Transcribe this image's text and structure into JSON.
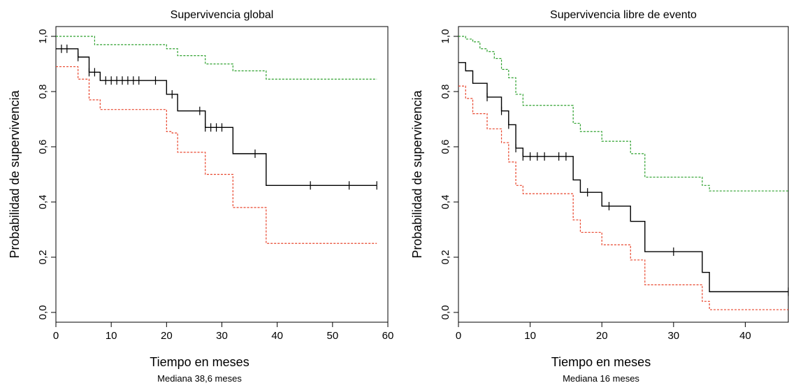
{
  "colors": {
    "estimate": "#000000",
    "upper_ci": "#2ca02c",
    "lower_ci": "#e8452c"
  },
  "chart_data": [
    {
      "type": "line",
      "title": "Supervivencia global",
      "xlabel": "Tiempo en meses",
      "subtitle": "Mediana 38,6 meses",
      "ylabel": "Probabilidad de supervivencia",
      "xlim": [
        0,
        60
      ],
      "ylim": [
        0,
        1
      ],
      "xticks": [
        0,
        10,
        20,
        30,
        40,
        50,
        60
      ],
      "xtick_labels": [
        "0",
        "10",
        "20",
        "30",
        "40",
        "50",
        "60"
      ],
      "yticks": [
        0,
        0.2,
        0.4,
        0.6,
        0.8,
        1.0
      ],
      "ytick_labels": [
        "0,0",
        "0,2",
        "0,4",
        "0,6",
        "0,8",
        "1,0"
      ],
      "grid": false,
      "series": [
        {
          "role": "estimate",
          "style": "solid",
          "x": [
            0,
            1,
            4,
            6,
            8,
            20,
            22,
            27,
            32,
            38,
            58
          ],
          "y": [
            0.955,
            0.955,
            0.925,
            0.87,
            0.84,
            0.79,
            0.73,
            0.67,
            0.575,
            0.46,
            0.46
          ],
          "censor_x": [
            1,
            2,
            4,
            6,
            7,
            9,
            10,
            11,
            12,
            13,
            14,
            15,
            18,
            21,
            26,
            27,
            28,
            29,
            30,
            36,
            46,
            53,
            58
          ],
          "censor_y": [
            0.955,
            0.955,
            0.925,
            0.87,
            0.87,
            0.84,
            0.84,
            0.84,
            0.84,
            0.84,
            0.84,
            0.84,
            0.84,
            0.79,
            0.73,
            0.67,
            0.67,
            0.67,
            0.67,
            0.575,
            0.46,
            0.46,
            0.46
          ]
        },
        {
          "role": "upper_ci",
          "style": "dotted",
          "x": [
            0,
            6,
            7,
            20,
            22,
            27,
            32,
            38,
            58
          ],
          "y": [
            1.0,
            1.0,
            0.97,
            0.955,
            0.93,
            0.9,
            0.875,
            0.845,
            0.845
          ]
        },
        {
          "role": "lower_ci",
          "style": "dotted",
          "x": [
            0,
            4,
            6,
            8,
            20,
            21,
            22,
            27,
            32,
            38,
            58
          ],
          "y": [
            0.89,
            0.845,
            0.77,
            0.735,
            0.655,
            0.65,
            0.58,
            0.5,
            0.38,
            0.25,
            0.25
          ]
        }
      ]
    },
    {
      "type": "line",
      "title": "Supervivencia libre de evento",
      "xlabel": "Tiempo en meses",
      "subtitle": "Mediana 16 meses",
      "ylabel": "Probabilidad de supervivencia",
      "xlim": [
        0,
        46
      ],
      "ylim": [
        0,
        1
      ],
      "xticks": [
        0,
        10,
        20,
        30,
        40
      ],
      "xtick_labels": [
        "0",
        "10",
        "20",
        "30",
        "40"
      ],
      "yticks": [
        0,
        0.2,
        0.4,
        0.6,
        0.8,
        1.0
      ],
      "ytick_labels": [
        "0,0",
        "0,2",
        "0,4",
        "0,6",
        "0,8",
        "1,0"
      ],
      "grid": false,
      "series": [
        {
          "role": "estimate",
          "style": "solid",
          "x": [
            0,
            1,
            2,
            4,
            6,
            7,
            8,
            9,
            16,
            17,
            20,
            24,
            26,
            34,
            35,
            46
          ],
          "y": [
            0.905,
            0.875,
            0.83,
            0.78,
            0.73,
            0.68,
            0.595,
            0.565,
            0.48,
            0.435,
            0.385,
            0.33,
            0.22,
            0.145,
            0.075,
            0.075
          ],
          "censor_x": [
            4,
            6,
            7,
            8,
            9,
            10,
            11,
            12,
            14,
            15,
            18,
            21,
            30,
            46
          ],
          "censor_y": [
            0.78,
            0.73,
            0.68,
            0.595,
            0.565,
            0.565,
            0.565,
            0.565,
            0.565,
            0.565,
            0.435,
            0.385,
            0.22,
            0.075
          ]
        },
        {
          "role": "upper_ci",
          "style": "dotted",
          "x": [
            0,
            1,
            2,
            3,
            4,
            5,
            6,
            7,
            8,
            9,
            16,
            17,
            20,
            24,
            26,
            34,
            35,
            46
          ],
          "y": [
            1.0,
            0.99,
            0.98,
            0.955,
            0.945,
            0.92,
            0.88,
            0.85,
            0.79,
            0.75,
            0.685,
            0.655,
            0.62,
            0.575,
            0.49,
            0.46,
            0.44,
            0.44
          ]
        },
        {
          "role": "lower_ci",
          "style": "dotted",
          "x": [
            0,
            1,
            2,
            4,
            6,
            7,
            8,
            9,
            16,
            17,
            20,
            24,
            26,
            34,
            35,
            46
          ],
          "y": [
            0.82,
            0.775,
            0.72,
            0.665,
            0.615,
            0.545,
            0.46,
            0.43,
            0.335,
            0.29,
            0.245,
            0.19,
            0.1,
            0.04,
            0.01,
            0.01
          ]
        }
      ]
    }
  ]
}
